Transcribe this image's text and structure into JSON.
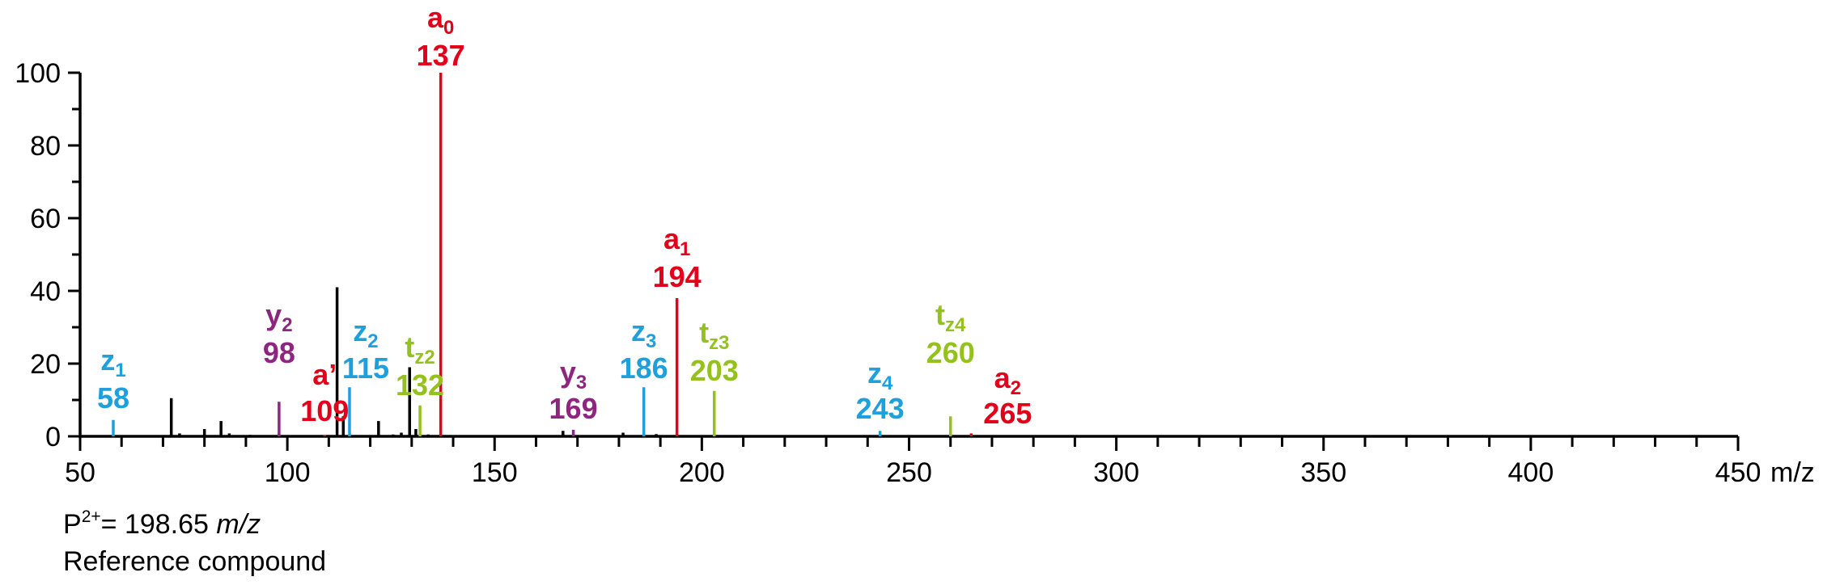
{
  "chart_data": {
    "type": "bar",
    "xlim": [
      50,
      450
    ],
    "ylim": [
      0,
      100
    ],
    "x_ticks": [
      50,
      100,
      150,
      200,
      250,
      300,
      350,
      400,
      450
    ],
    "y_ticks": [
      0,
      20,
      40,
      60,
      80,
      100
    ],
    "x_unit_label": "m/z",
    "colors": {
      "unassigned": "#000000",
      "a": "#e2001a",
      "z": "#1ea0dc",
      "y": "#8e2680",
      "t": "#95c11f"
    },
    "unassigned_peaks": [
      {
        "mz": 58,
        "intensity": 0.3
      },
      {
        "mz": 66,
        "intensity": 0.3
      },
      {
        "mz": 72,
        "intensity": 10.5
      },
      {
        "mz": 74,
        "intensity": 0.8
      },
      {
        "mz": 80,
        "intensity": 2
      },
      {
        "mz": 84,
        "intensity": 4.2
      },
      {
        "mz": 86,
        "intensity": 0.8
      },
      {
        "mz": 91,
        "intensity": 0.4
      },
      {
        "mz": 112,
        "intensity": 41
      },
      {
        "mz": 113.5,
        "intensity": 5.5
      },
      {
        "mz": 122,
        "intensity": 4.2
      },
      {
        "mz": 125.5,
        "intensity": 0.5
      },
      {
        "mz": 127.5,
        "intensity": 1
      },
      {
        "mz": 129.5,
        "intensity": 19
      },
      {
        "mz": 131,
        "intensity": 2
      },
      {
        "mz": 134,
        "intensity": 0.5
      },
      {
        "mz": 145,
        "intensity": 0.3
      },
      {
        "mz": 156,
        "intensity": 0.3
      },
      {
        "mz": 166.5,
        "intensity": 1.5
      },
      {
        "mz": 174,
        "intensity": 0.3
      },
      {
        "mz": 181,
        "intensity": 1
      },
      {
        "mz": 189,
        "intensity": 0.6
      }
    ],
    "assigned_peaks": [
      {
        "series": "z",
        "ion": "z",
        "sub": "1",
        "mz_label": "58",
        "mz": 58,
        "intensity": 4.5
      },
      {
        "series": "y",
        "ion": "y",
        "sub": "2",
        "mz_label": "98",
        "mz": 98,
        "intensity": 9.5
      },
      {
        "series": "a",
        "ion": "a’",
        "sub": "",
        "mz_label": "109",
        "mz": 109,
        "intensity": 0.3
      },
      {
        "series": "z",
        "ion": "z",
        "sub": "2",
        "mz_label": "115",
        "mz": 115,
        "intensity": 13.5
      },
      {
        "series": "t",
        "ion": "t",
        "sub": "z2",
        "mz_label": "132",
        "mz": 132,
        "intensity": 8.5
      },
      {
        "series": "a",
        "ion": "a",
        "sub": "0",
        "mz_label": "137",
        "mz": 137,
        "intensity": 100
      },
      {
        "series": "y",
        "ion": "y",
        "sub": "3",
        "mz_label": "169",
        "mz": 169,
        "intensity": 1.8
      },
      {
        "series": "z",
        "ion": "z",
        "sub": "3",
        "mz_label": "186",
        "mz": 186,
        "intensity": 13.5
      },
      {
        "series": "a",
        "ion": "a",
        "sub": "1",
        "mz_label": "194",
        "mz": 194,
        "intensity": 38
      },
      {
        "series": "t",
        "ion": "t",
        "sub": "z3",
        "mz_label": "203",
        "mz": 203,
        "intensity": 12.5
      },
      {
        "series": "z",
        "ion": "z",
        "sub": "4",
        "mz_label": "243",
        "mz": 243,
        "intensity": 1.5
      },
      {
        "series": "t",
        "ion": "t",
        "sub": "z4",
        "mz_label": "260",
        "mz": 260,
        "intensity": 5.5
      },
      {
        "series": "a",
        "ion": "a",
        "sub": "2",
        "mz_label": "265",
        "mz": 265,
        "intensity": 0.8
      }
    ]
  },
  "notes": {
    "precursor_prefix": "P",
    "precursor_charge": "2+",
    "precursor_value": "= 198.65 ",
    "precursor_unit": "m/z",
    "compound": "Reference compound"
  }
}
